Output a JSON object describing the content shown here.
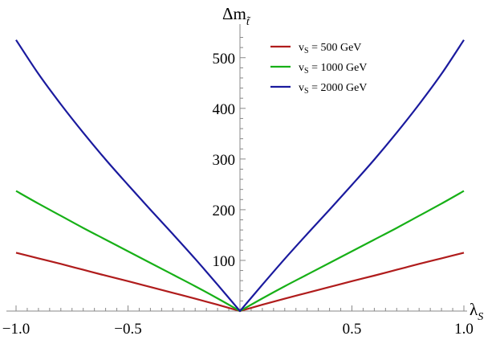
{
  "chart_data": {
    "type": "line",
    "title": "",
    "xlabel": "λ_S",
    "ylabel": "Δm_t̃",
    "xlim": [
      -1.0,
      1.0
    ],
    "ylim": [
      0,
      550
    ],
    "x_ticks": [
      -1.0,
      -0.5,
      0.5,
      1.0
    ],
    "x_tick_labels": [
      "−1.0",
      "−0.5",
      "0.5",
      "1.0"
    ],
    "y_ticks": [
      100,
      200,
      300,
      400,
      500
    ],
    "y_tick_labels": [
      "100",
      "200",
      "300",
      "400",
      "500"
    ],
    "grid": false,
    "legend_position": "top-center",
    "x": [
      -1.0,
      -0.9,
      -0.8,
      -0.7,
      -0.6,
      -0.5,
      -0.4,
      -0.3,
      -0.2,
      -0.1,
      0.0,
      0.1,
      0.2,
      0.3,
      0.4,
      0.5,
      0.6,
      0.7,
      0.8,
      0.9,
      1.0
    ],
    "series": [
      {
        "name": "v_S = 500 GeV",
        "legend_prefix": "v",
        "legend_sub": "S",
        "legend_rest": " = 500 GeV",
        "color": "#b01c1c",
        "values": [
          115,
          104,
          93,
          81.5,
          70,
          59,
          47.5,
          36,
          24.5,
          12.5,
          0,
          12.5,
          24.5,
          36,
          47.5,
          59,
          70,
          81.5,
          93,
          104,
          115
        ]
      },
      {
        "name": "v_S = 1000 GeV",
        "legend_prefix": "v",
        "legend_sub": "S",
        "legend_rest": " = 1000 GeV",
        "color": "#17b017",
        "values": [
          237,
          212,
          188,
          164,
          141,
          118,
          95,
          72,
          49,
          25,
          0,
          25,
          49,
          72,
          95,
          118,
          141,
          164,
          188,
          212,
          237
        ]
      },
      {
        "name": "v_S = 2000 GeV",
        "legend_prefix": "v",
        "legend_sub": "S",
        "legend_rest": " = 2000 GeV",
        "color": "#1a1a9e",
        "values": [
          535,
          468,
          408,
          352,
          299,
          249,
          200,
          152,
          103,
          52,
          0,
          52,
          103,
          152,
          200,
          249,
          299,
          352,
          408,
          468,
          535
        ]
      }
    ]
  }
}
